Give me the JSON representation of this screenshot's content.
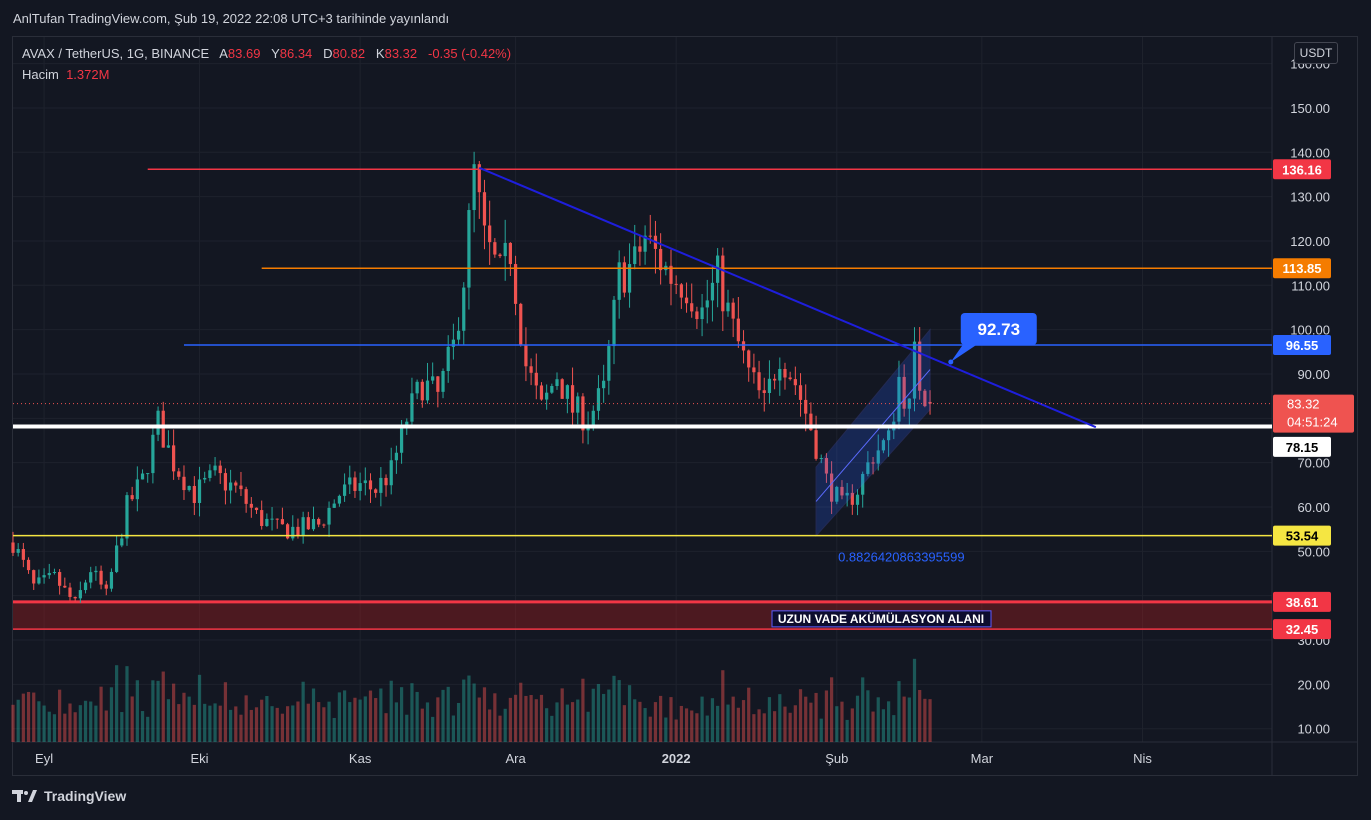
{
  "publish_line": "AnlTufan TradingView.com, Şub 19, 2022 22:08 UTC+3 tarihinde yayınlandı",
  "legend": {
    "symbol": "AVAX / TetherUS, 1G, BINANCE",
    "open_label": "A",
    "open": "83.69",
    "high_label": "Y",
    "high": "86.34",
    "low_label": "D",
    "low": "80.82",
    "close_label": "K",
    "close": "83.32",
    "change": "-0.35 (-0.42%)",
    "volume_label": "Hacim",
    "volume": "1.372M"
  },
  "currency_button": "USDT",
  "brand": "TradingView",
  "colors": {
    "up": "#26a69a",
    "down": "#ef5350",
    "background": "#131722",
    "grid": "#1e222d"
  },
  "chart_data": {
    "type": "candlestick",
    "y_axis": {
      "min": 7,
      "max": 166,
      "ticks": [
        10,
        20,
        30,
        40,
        50,
        60,
        70,
        80,
        90,
        100,
        110,
        120,
        130,
        140,
        150,
        160
      ],
      "tick_labels": [
        "10.00",
        "20.00",
        "30.00",
        "",
        "50.00",
        "60.00",
        "70.00",
        "80.00",
        "90.00",
        "100.00",
        "110.00",
        "120.00",
        "130.00",
        "140.00",
        "150.00",
        "160.00"
      ]
    },
    "x_axis": {
      "start": "2021-08-26",
      "end": "2022-04-26",
      "labels": [
        {
          "date": "2021-09-01",
          "text": "Eyl"
        },
        {
          "date": "2021-10-01",
          "text": "Eki"
        },
        {
          "date": "2021-11-01",
          "text": "Kas"
        },
        {
          "date": "2021-12-01",
          "text": "Ara"
        },
        {
          "date": "2022-01-01",
          "text": "2022"
        },
        {
          "date": "2022-02-01",
          "text": "Şub"
        },
        {
          "date": "2022-03-01",
          "text": "Mar"
        },
        {
          "date": "2022-04-01",
          "text": "Nis"
        }
      ]
    },
    "anchors": [
      [
        "2021-08-26",
        52
      ],
      [
        "2021-08-30",
        42
      ],
      [
        "2021-09-03",
        44
      ],
      [
        "2021-09-07",
        38
      ],
      [
        "2021-09-10",
        46
      ],
      [
        "2021-09-13",
        40
      ],
      [
        "2021-09-17",
        60
      ],
      [
        "2021-09-20",
        66
      ],
      [
        "2021-09-23",
        79
      ],
      [
        "2021-09-26",
        70
      ],
      [
        "2021-09-30",
        63
      ],
      [
        "2021-10-04",
        67
      ],
      [
        "2021-10-08",
        64
      ],
      [
        "2021-10-12",
        58
      ],
      [
        "2021-10-16",
        55
      ],
      [
        "2021-10-20",
        55
      ],
      [
        "2021-10-24",
        56
      ],
      [
        "2021-10-28",
        63
      ],
      [
        "2021-11-01",
        65
      ],
      [
        "2021-11-04",
        64
      ],
      [
        "2021-11-07",
        68
      ],
      [
        "2021-11-10",
        80
      ],
      [
        "2021-11-13",
        88
      ],
      [
        "2021-11-16",
        85
      ],
      [
        "2021-11-19",
        96
      ],
      [
        "2021-11-21",
        112
      ],
      [
        "2021-11-23",
        135
      ],
      [
        "2021-11-25",
        120
      ],
      [
        "2021-11-28",
        112
      ],
      [
        "2021-11-30",
        118
      ],
      [
        "2021-12-03",
        92
      ],
      [
        "2021-12-06",
        82
      ],
      [
        "2021-12-09",
        90
      ],
      [
        "2021-12-12",
        82
      ],
      [
        "2021-12-15",
        80
      ],
      [
        "2021-12-18",
        86
      ],
      [
        "2021-12-21",
        112
      ],
      [
        "2021-12-24",
        115
      ],
      [
        "2021-12-26",
        121
      ],
      [
        "2021-12-28",
        117
      ],
      [
        "2021-12-31",
        112
      ],
      [
        "2022-01-03",
        110
      ],
      [
        "2022-01-06",
        104
      ],
      [
        "2022-01-09",
        112
      ],
      [
        "2022-01-12",
        100
      ],
      [
        "2022-01-15",
        90
      ],
      [
        "2022-01-18",
        83
      ],
      [
        "2022-01-21",
        95
      ],
      [
        "2022-01-24",
        88
      ],
      [
        "2022-01-27",
        78
      ],
      [
        "2022-01-30",
        66
      ],
      [
        "2022-02-02",
        60
      ],
      [
        "2022-02-05",
        64
      ],
      [
        "2022-02-08",
        72
      ],
      [
        "2022-02-11",
        75
      ],
      [
        "2022-02-13",
        89
      ],
      [
        "2022-02-15",
        82
      ],
      [
        "2022-02-16",
        94
      ],
      [
        "2022-02-17",
        88
      ],
      [
        "2022-02-19",
        83.32
      ]
    ],
    "last_candle": {
      "open": 83.69,
      "high": 86.34,
      "low": 80.82,
      "close": 83.32
    },
    "levels": [
      {
        "value": 136.16,
        "label": "136.16",
        "color": "#f23645",
        "from": "2021-09-21"
      },
      {
        "value": 113.85,
        "label": "113.85",
        "color": "#f57c00",
        "from": "2021-10-13"
      },
      {
        "value": 96.55,
        "label": "96.55",
        "color": "#2962ff",
        "from": "2021-09-28"
      },
      {
        "value": 78.15,
        "label": "78.15",
        "color": "#ffffff",
        "from": "2021-08-26"
      },
      {
        "value": 53.54,
        "label": "53.54",
        "color": "#f5e642",
        "from": "2021-08-26"
      }
    ],
    "current_price": {
      "value": "83.32",
      "countdown": "04:51:24"
    },
    "zone": {
      "top": 38.61,
      "bottom": 32.45,
      "top_label": "38.61",
      "bottom_label": "32.45",
      "text": "UZUN VADE AKÜMÜLASYON ALANI"
    },
    "trendline": {
      "from": [
        "2021-11-24",
        136.5
      ],
      "to": [
        "2022-03-23",
        78
      ]
    },
    "channel": {
      "lower_from": [
        "2022-01-28",
        53.5
      ],
      "lower_to": [
        "2022-02-19",
        82
      ],
      "upper_from": [
        "2022-01-28",
        69
      ],
      "upper_to": [
        "2022-02-19",
        100
      ]
    },
    "callout": {
      "text": "92.73",
      "anchor": [
        "2022-02-23",
        92.7
      ]
    },
    "fib_text": "0.8826420863395599"
  }
}
